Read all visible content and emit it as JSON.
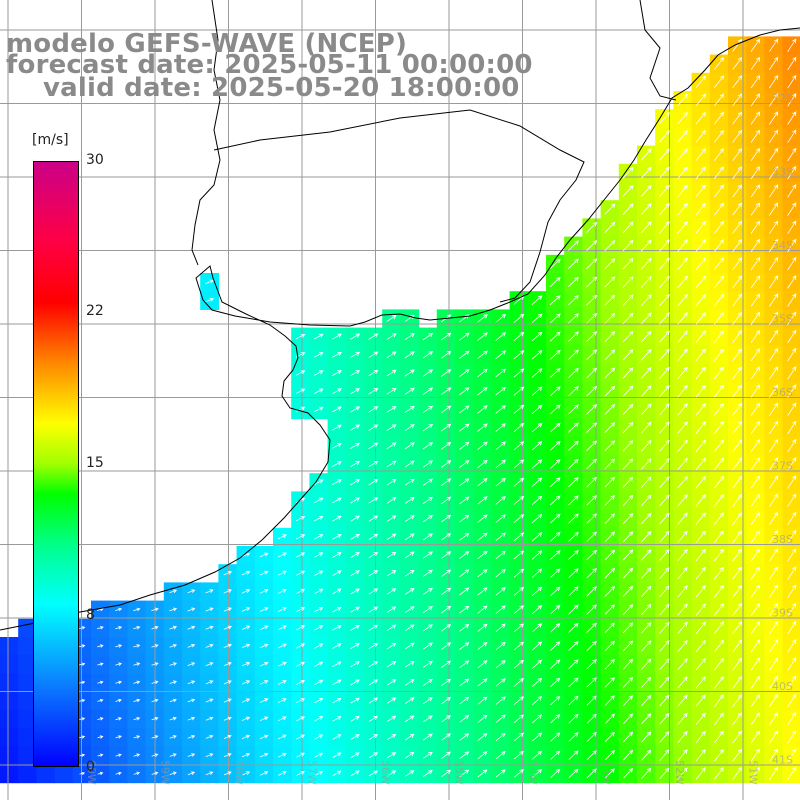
{
  "header": {
    "title": "modelo GEFS-WAVE (NCEP)",
    "forecast_date": "forecast date: 2025-05-11 00:00:00",
    "valid_date": "valid date: 2025-05-20 18:00:00"
  },
  "legend": {
    "unit": "[m/s]",
    "ticks": [
      "30",
      "22",
      "15",
      "8",
      "0"
    ],
    "tick_values": [
      30,
      22,
      15,
      8,
      0
    ],
    "min": 0,
    "max": 30,
    "color_stops": [
      {
        "value": 0,
        "color": "#0000ff"
      },
      {
        "value": 4,
        "color": "#0b7cff"
      },
      {
        "value": 8,
        "color": "#00ffff"
      },
      {
        "value": 11,
        "color": "#00ff88"
      },
      {
        "value": 13.5,
        "color": "#00ff00"
      },
      {
        "value": 15,
        "color": "#a0ff00"
      },
      {
        "value": 17,
        "color": "#ffff00"
      },
      {
        "value": 20,
        "color": "#ff8800"
      },
      {
        "value": 23,
        "color": "#ff0000"
      },
      {
        "value": 26,
        "color": "#ff0044"
      },
      {
        "value": 30,
        "color": "#cc0088"
      }
    ]
  },
  "axes": {
    "lon_labels": [
      "60W",
      "59W",
      "58W",
      "57W",
      "56W",
      "55W",
      "54W",
      "53W",
      "52W",
      "51W"
    ],
    "lat_labels": [
      "32S",
      "33S",
      "34S",
      "35S",
      "36S",
      "37S",
      "38S",
      "39S",
      "40S",
      "41S"
    ]
  },
  "style": {
    "land_color": "#ffffff",
    "grid_color": "#9a9a9a",
    "arrow_color": "#ffffff",
    "coast_color": "#000000",
    "header_color": "#8a8a8a"
  }
}
